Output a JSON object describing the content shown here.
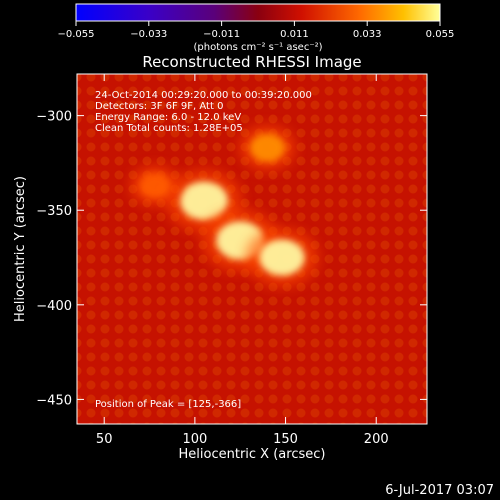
{
  "chart_data": {
    "type": "heatmap",
    "title": "Reconstructed RHESSI Image",
    "xlabel": "Heliocentric X (arcsec)",
    "ylabel": "Heliocentric Y (arcsec)",
    "xlim": [
      35,
      228
    ],
    "ylim": [
      -463,
      -278
    ],
    "xticks": [
      50,
      100,
      150,
      200
    ],
    "yticks": [
      -300,
      -350,
      -400,
      -450
    ],
    "colorbar": {
      "ticks": [
        -0.055,
        -0.033,
        -0.011,
        0.011,
        0.033,
        0.055
      ],
      "tick_labels": [
        "−0.055",
        "−0.033",
        "−0.011",
        "0.011",
        "0.033",
        "0.055"
      ],
      "range": [
        -0.055,
        0.055
      ],
      "unit_label": "(photons cm⁻² s⁻¹ asec⁻²)"
    },
    "annotations": [
      "24-Oct-2014 00:29:20.000 to 00:39:20.000",
      "Detectors: 3F 6F 9F, Att 0",
      "Energy Range: 6.0 - 12.0 keV",
      "Clean     Total counts: 1.28E+05"
    ],
    "peak_label": "Position of Peak = [125,-366]",
    "sources": [
      {
        "x": 105,
        "y": -345,
        "intensity": 0.055
      },
      {
        "x": 125,
        "y": -366,
        "intensity": 0.055
      },
      {
        "x": 148,
        "y": -375,
        "intensity": 0.05
      },
      {
        "x": 140,
        "y": -317,
        "intensity": 0.03
      },
      {
        "x": 78,
        "y": -337,
        "intensity": 0.022
      }
    ],
    "background_level": 0.018,
    "colors": {
      "low": "#0000ff",
      "mid": "#b00000",
      "high": "#ffff66"
    }
  },
  "footer": {
    "timestamp": "6-Jul-2017 03:07"
  }
}
